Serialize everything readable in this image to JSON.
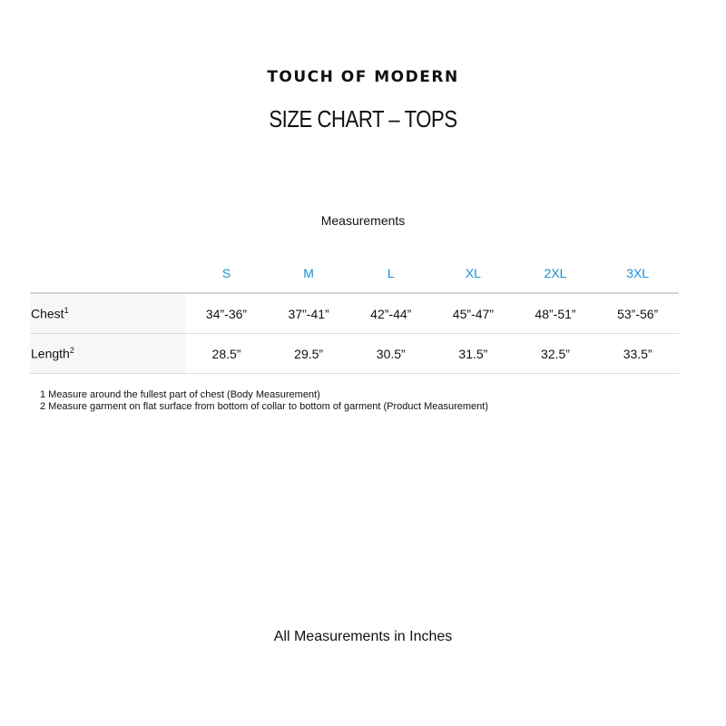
{
  "brand": "TOUCH OF MODERN",
  "title": "SIZE CHART – TOPS",
  "section_label": "Measurements",
  "sizes": [
    "S",
    "M",
    "L",
    "XL",
    "2XL",
    "3XL"
  ],
  "rows": [
    {
      "label": "Chest",
      "footnote": "1",
      "values": [
        "34”-36”",
        "37”-41”",
        "42”-44”",
        "45”-47”",
        "48”-51”",
        "53”-56”"
      ]
    },
    {
      "label": "Length",
      "footnote": "2",
      "values": [
        "28.5”",
        "29.5”",
        "30.5”",
        "31.5”",
        "32.5”",
        "33.5”"
      ]
    }
  ],
  "footnotes": [
    "1 Measure around the fullest part of chest (Body Measurement)",
    "2 Measure garment on flat surface from bottom of collar to bottom of garment (Product Measurement)"
  ],
  "unit_note": "All Measurements in Inches",
  "colors": {
    "size_header": "#1a8fd6",
    "label_bg": "#f7f7f7"
  }
}
